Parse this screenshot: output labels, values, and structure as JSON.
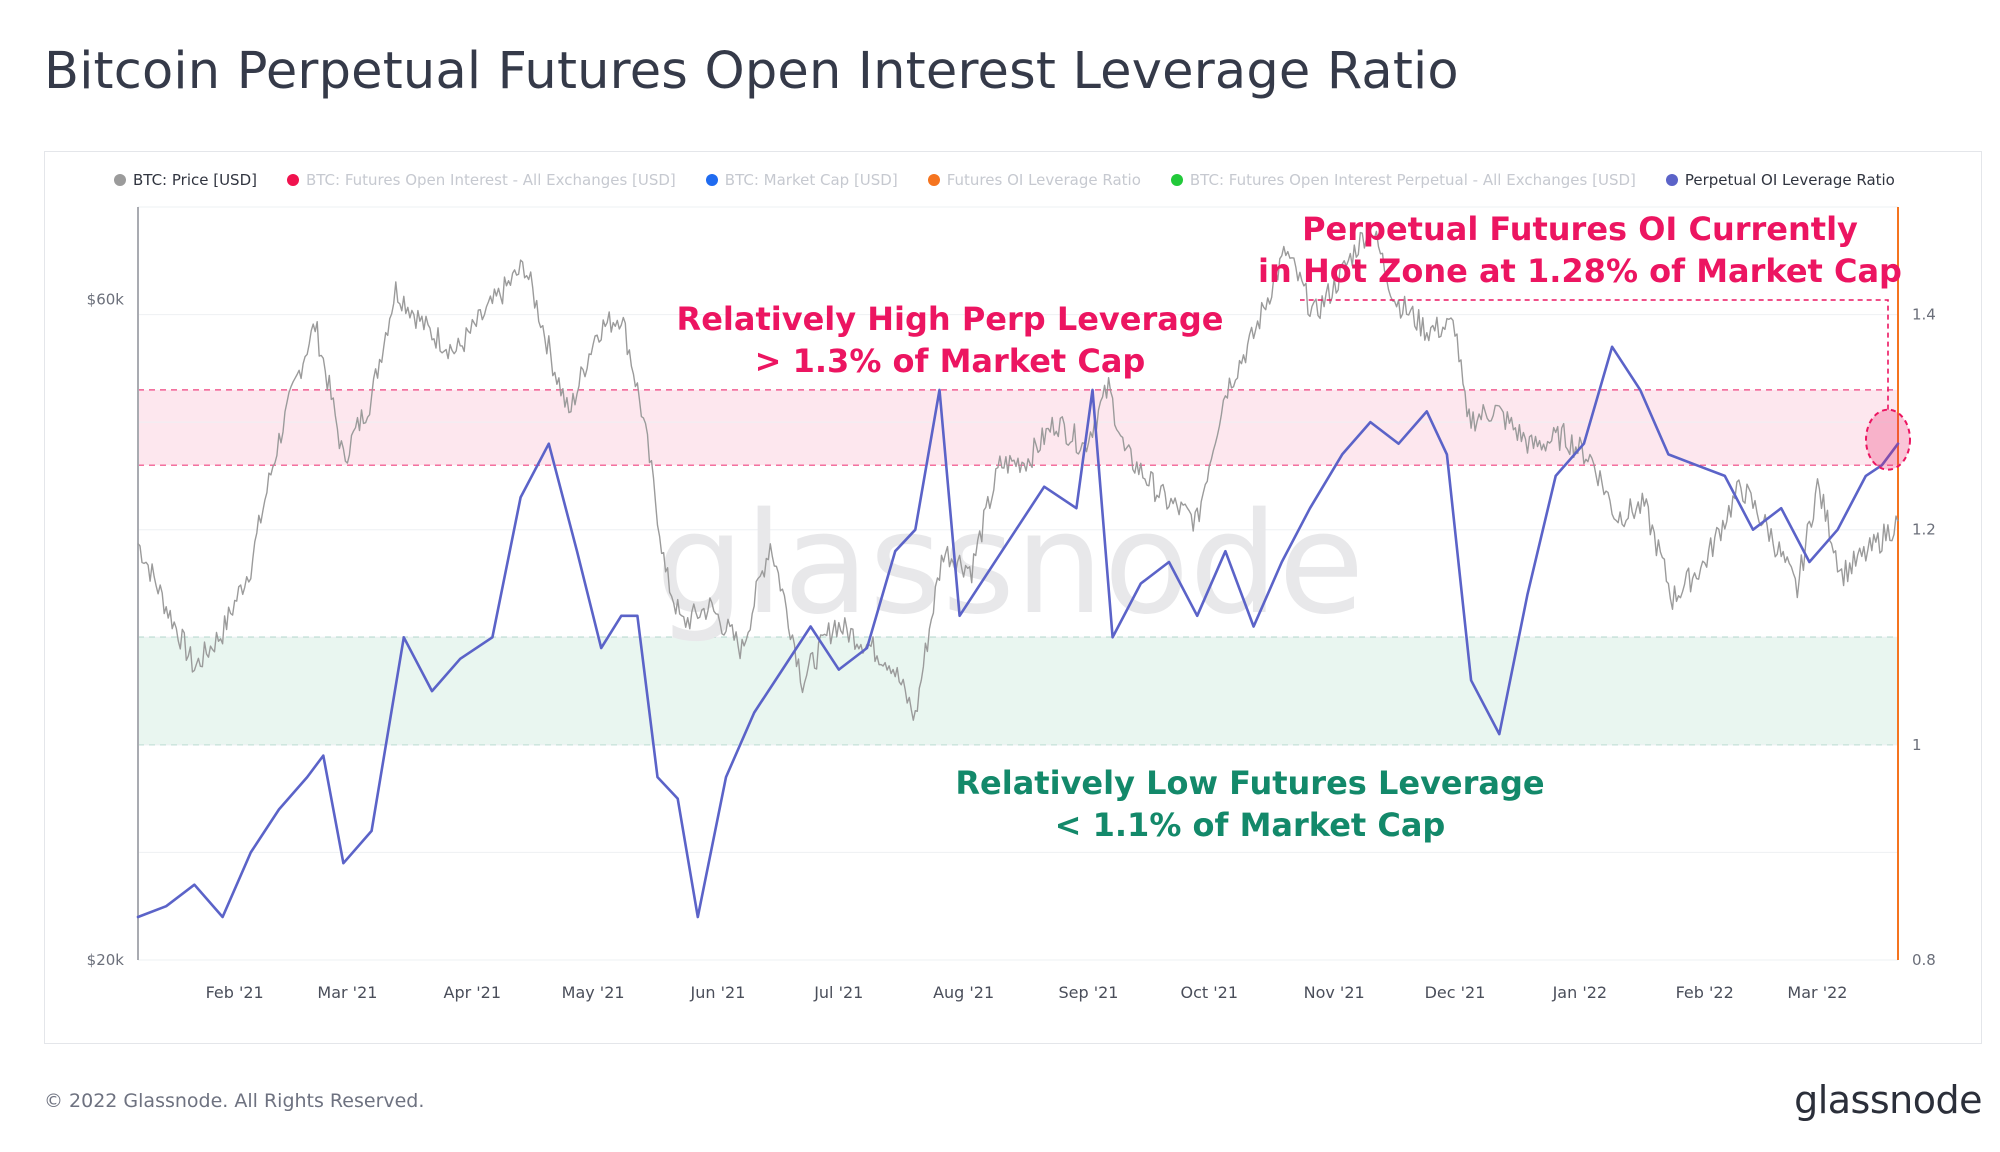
{
  "title": "Bitcoin Perpetual Futures Open Interest Leverage Ratio",
  "legend": [
    {
      "label": "BTC: Price [USD]",
      "color": "#9b9b9b",
      "active": true
    },
    {
      "label": "BTC: Futures Open Interest - All Exchanges [USD]",
      "color": "#f0124e",
      "active": false
    },
    {
      "label": "BTC: Market Cap [USD]",
      "color": "#1f6bf0",
      "active": false
    },
    {
      "label": "Futures OI Leverage Ratio",
      "color": "#f5741f",
      "active": false
    },
    {
      "label": "BTC: Futures Open Interest Perpetual - All Exchanges [USD]",
      "color": "#22c93a",
      "active": false
    },
    {
      "label": "Perpetual OI Leverage Ratio",
      "color": "#5b63c8",
      "active": true
    }
  ],
  "annotations": {
    "high_line1": "Relatively High Perp Leverage",
    "high_line2": "> 1.3% of Market Cap",
    "low_line1": "Relatively Low Futures Leverage",
    "low_line2": "< 1.1% of Market Cap",
    "current_line1": "Perpetual Futures OI Currently",
    "current_line2": "in Hot Zone at 1.28% of Market Cap"
  },
  "footer": "© 2022 Glassnode. All Rights Reserved.",
  "brand": "glassnode",
  "watermark": "glassnode",
  "colors": {
    "price": "#9b9b9b",
    "ratio": "#5b63c8",
    "hot_zone_fill": "#fde7ee",
    "hot_zone_border": "#ec1561",
    "cool_zone_fill": "#e9f6f0",
    "cool_zone_border": "#1fa06d",
    "right_axis": "#f5741f"
  },
  "chart_data": {
    "type": "line",
    "x_tick_labels": [
      "Feb '21",
      "Mar '21",
      "Apr '21",
      "May '21",
      "Jun '21",
      "Jul '21",
      "Aug '21",
      "Sep '21",
      "Oct '21",
      "Nov '21",
      "Dec '21",
      "Jan '22",
      "Feb '22",
      "Mar '22"
    ],
    "x_range": [
      "2021-01-08",
      "2022-03-21"
    ],
    "left_axis": {
      "scale": "log",
      "ylim": [
        20000,
        70000
      ],
      "tick_labels": [
        "$20k",
        "$60k"
      ],
      "tick_values": [
        20000,
        60000
      ]
    },
    "right_axis": {
      "ylim": [
        0.8,
        1.5
      ],
      "tick_labels": [
        "0.8",
        "1",
        "1.2",
        "1.4"
      ],
      "tick_values": [
        0.8,
        1.0,
        1.2,
        1.4
      ]
    },
    "bands": [
      {
        "name": "hot",
        "from": 1.26,
        "to": 1.33
      },
      {
        "name": "cool",
        "from": 1.0,
        "to": 1.1
      }
    ],
    "series": [
      {
        "name": "BTC: Price [USD]",
        "axis": "left",
        "x": [
          "2021-01-08",
          "2021-01-15",
          "2021-01-22",
          "2021-01-29",
          "2021-02-05",
          "2021-02-12",
          "2021-02-19",
          "2021-02-21",
          "2021-02-28",
          "2021-03-07",
          "2021-03-13",
          "2021-03-21",
          "2021-03-28",
          "2021-04-04",
          "2021-04-14",
          "2021-04-21",
          "2021-04-25",
          "2021-05-02",
          "2021-05-08",
          "2021-05-13",
          "2021-05-19",
          "2021-05-23",
          "2021-05-30",
          "2021-06-07",
          "2021-06-14",
          "2021-06-22",
          "2021-06-30",
          "2021-07-07",
          "2021-07-14",
          "2021-07-20",
          "2021-07-27",
          "2021-08-03",
          "2021-08-10",
          "2021-08-17",
          "2021-08-24",
          "2021-08-31",
          "2021-09-06",
          "2021-09-10",
          "2021-09-20",
          "2021-09-28",
          "2021-10-05",
          "2021-10-12",
          "2021-10-20",
          "2021-10-27",
          "2021-11-01",
          "2021-11-10",
          "2021-11-16",
          "2021-11-24",
          "2021-12-01",
          "2021-12-04",
          "2021-12-11",
          "2021-12-20",
          "2021-12-28",
          "2022-01-04",
          "2022-01-10",
          "2022-01-17",
          "2022-01-24",
          "2022-02-01",
          "2022-02-10",
          "2022-02-17",
          "2022-02-24",
          "2022-03-01",
          "2022-03-07",
          "2022-03-14",
          "2022-03-21"
        ],
        "values": [
          40000,
          36000,
          32500,
          34500,
          38500,
          47500,
          55500,
          57500,
          46000,
          51000,
          61000,
          57000,
          55000,
          58500,
          63500,
          54000,
          49500,
          57000,
          58500,
          50000,
          38000,
          35000,
          36000,
          33500,
          40000,
          31800,
          35000,
          34000,
          32800,
          29900,
          39500,
          38300,
          45500,
          46000,
          49000,
          47000,
          51800,
          46500,
          43000,
          41500,
          51500,
          56500,
          65000,
          58500,
          61300,
          68000,
          60100,
          57000,
          57500,
          49000,
          50000,
          47000,
          47800,
          46000,
          41800,
          42600,
          36500,
          38700,
          44000,
          40800,
          37000,
          44000,
          38000,
          39500,
          41500
        ]
      },
      {
        "name": "Perpetual OI Leverage Ratio",
        "axis": "right",
        "x": [
          "2021-01-08",
          "2021-01-15",
          "2021-01-22",
          "2021-01-29",
          "2021-02-05",
          "2021-02-12",
          "2021-02-19",
          "2021-02-23",
          "2021-02-28",
          "2021-03-07",
          "2021-03-15",
          "2021-03-22",
          "2021-03-29",
          "2021-04-06",
          "2021-04-13",
          "2021-04-20",
          "2021-04-27",
          "2021-05-03",
          "2021-05-08",
          "2021-05-12",
          "2021-05-17",
          "2021-05-22",
          "2021-05-27",
          "2021-06-03",
          "2021-06-10",
          "2021-06-17",
          "2021-06-24",
          "2021-07-01",
          "2021-07-08",
          "2021-07-15",
          "2021-07-20",
          "2021-07-26",
          "2021-07-31",
          "2021-08-07",
          "2021-08-14",
          "2021-08-21",
          "2021-08-29",
          "2021-09-02",
          "2021-09-07",
          "2021-09-14",
          "2021-09-21",
          "2021-09-28",
          "2021-10-05",
          "2021-10-12",
          "2021-10-19",
          "2021-10-26",
          "2021-11-03",
          "2021-11-10",
          "2021-11-17",
          "2021-11-24",
          "2021-11-29",
          "2021-12-05",
          "2021-12-12",
          "2021-12-19",
          "2021-12-26",
          "2022-01-02",
          "2022-01-09",
          "2022-01-16",
          "2022-01-23",
          "2022-01-30",
          "2022-02-06",
          "2022-02-13",
          "2022-02-20",
          "2022-02-27",
          "2022-03-06",
          "2022-03-13",
          "2022-03-17",
          "2022-03-21"
        ],
        "values": [
          0.84,
          0.85,
          0.87,
          0.84,
          0.9,
          0.94,
          0.97,
          0.99,
          0.89,
          0.92,
          1.1,
          1.05,
          1.08,
          1.1,
          1.23,
          1.28,
          1.18,
          1.09,
          1.12,
          1.12,
          0.97,
          0.95,
          0.84,
          0.97,
          1.03,
          1.07,
          1.11,
          1.07,
          1.09,
          1.18,
          1.2,
          1.33,
          1.12,
          1.16,
          1.2,
          1.24,
          1.22,
          1.33,
          1.1,
          1.15,
          1.17,
          1.12,
          1.18,
          1.11,
          1.17,
          1.22,
          1.27,
          1.3,
          1.28,
          1.31,
          1.27,
          1.06,
          1.01,
          1.14,
          1.25,
          1.28,
          1.37,
          1.33,
          1.27,
          1.26,
          1.25,
          1.2,
          1.22,
          1.17,
          1.2,
          1.25,
          1.26,
          1.28
        ]
      }
    ]
  }
}
